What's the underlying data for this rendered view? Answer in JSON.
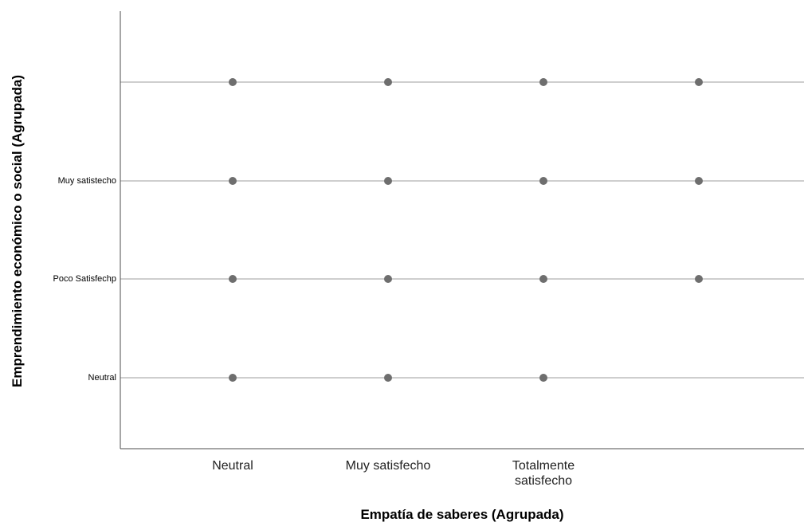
{
  "chart_data": {
    "type": "scatter",
    "title": "",
    "xlabel": "Empatía de saberes (Agrupada)",
    "ylabel": "Emprendimiento económico o social (Agrupada)",
    "x_categories": [
      "Neutral",
      "Muy satisfecho",
      "Totalmente satisfecho",
      ""
    ],
    "x_tick_labels": [
      [
        "Neutral"
      ],
      [
        "Muy satisfecho"
      ],
      [
        "Totalmente",
        "satisfecho"
      ],
      [
        ""
      ]
    ],
    "y_categories": [
      "Neutral",
      "Poco Satisfechp",
      "Muy satistecho",
      ""
    ],
    "points": [
      {
        "x": "Neutral",
        "y": ""
      },
      {
        "x": "Muy satisfecho",
        "y": ""
      },
      {
        "x": "Totalmente satisfecho",
        "y": ""
      },
      {
        "x": "",
        "y": ""
      },
      {
        "x": "Neutral",
        "y": "Muy satistecho"
      },
      {
        "x": "Muy satisfecho",
        "y": "Muy satistecho"
      },
      {
        "x": "Totalmente satisfecho",
        "y": "Muy satistecho"
      },
      {
        "x": "",
        "y": "Muy satistecho"
      },
      {
        "x": "Neutral",
        "y": "Poco Satisfechp"
      },
      {
        "x": "Muy satisfecho",
        "y": "Poco Satisfechp"
      },
      {
        "x": "Totalmente satisfecho",
        "y": "Poco Satisfechp"
      },
      {
        "x": "",
        "y": "Poco Satisfechp"
      },
      {
        "x": "Neutral",
        "y": "Neutral"
      },
      {
        "x": "Muy satisfecho",
        "y": "Neutral"
      },
      {
        "x": "Totalmente satisfecho",
        "y": "Neutral"
      }
    ],
    "grid": "horizontal",
    "legend": "none",
    "colors": {
      "point": "#6e6e6e",
      "gridline": "#bdbdbd",
      "axis": "#4d4d4d",
      "text": "#000000"
    }
  }
}
